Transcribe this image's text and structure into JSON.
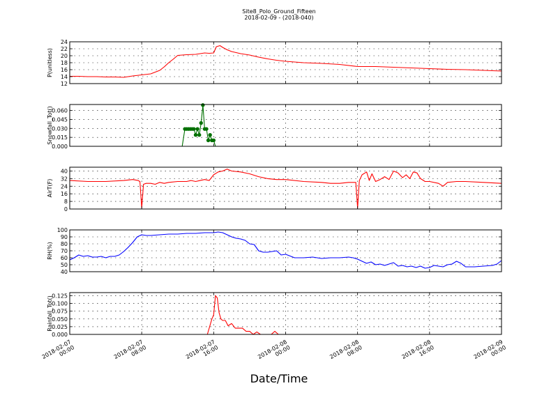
{
  "figure": {
    "title": "Site8_Polo_Ground_Fifteen",
    "subtitle": "2018-02-09 - (2018-040)",
    "xlabel": "Date/Time",
    "x_ticks": [
      [
        "2018-02-07",
        "00:00"
      ],
      [
        "2018-02-07",
        "08:00"
      ],
      [
        "2018-02-07",
        "16:00"
      ],
      [
        "2018-02-08",
        "00:00"
      ],
      [
        "2018-02-08",
        "08:00"
      ],
      [
        "2018-02-08",
        "16:00"
      ],
      [
        "2018-02-09",
        "00:00"
      ]
    ],
    "x_range_hours": [
      0,
      48
    ]
  },
  "chart_data": [
    {
      "type": "line",
      "ylabel": "P(unitless)",
      "ylim": [
        12,
        24
      ],
      "yticks": [
        12,
        14,
        16,
        18,
        20,
        22,
        24
      ],
      "tick_decimals": 0,
      "grid": true,
      "series": [
        {
          "color": "#ff0000",
          "markers": false,
          "x": [
            0,
            1,
            2,
            3,
            4,
            5,
            6,
            7,
            8,
            9,
            10,
            10.5,
            11,
            11.5,
            12,
            12.5,
            13,
            14,
            15,
            15.5,
            16,
            16.3,
            16.7,
            17,
            17.5,
            18,
            19,
            20,
            21,
            22,
            23,
            24,
            26,
            28,
            30,
            32,
            34,
            36,
            38,
            40,
            42,
            44,
            46,
            48
          ],
          "y": [
            14.1,
            14.1,
            14,
            14,
            13.9,
            13.9,
            13.8,
            14.2,
            14.5,
            14.8,
            15.8,
            16.8,
            18,
            19,
            20.1,
            20.2,
            20.3,
            20.4,
            20.8,
            20.7,
            20.8,
            22.6,
            22.9,
            22.4,
            21.7,
            21.2,
            20.6,
            20.2,
            19.6,
            19.1,
            18.7,
            18.4,
            18,
            17.8,
            17.5,
            16.9,
            16.9,
            16.7,
            16.5,
            16.3,
            16.1,
            16,
            15.8,
            15.6
          ]
        }
      ]
    },
    {
      "type": "line",
      "ylabel": "Snowfall_Tot()",
      "ylim": [
        0,
        0.07
      ],
      "yticks": [
        0,
        0.015,
        0.03,
        0.045,
        0.06
      ],
      "tick_decimals": 3,
      "grid": true,
      "series": [
        {
          "color": "#007000",
          "markers": true,
          "x": [
            0,
            12.5,
            12.8,
            13.0,
            13.2,
            13.4,
            13.6,
            13.8,
            14.0,
            14.2,
            14.4,
            14.6,
            14.8,
            15.0,
            15.2,
            15.4,
            15.6,
            15.8,
            16.0,
            16.2,
            48
          ],
          "y": [
            0,
            0,
            0.029,
            0.029,
            0.029,
            0.029,
            0.029,
            0.029,
            0.019,
            0.029,
            0.019,
            0.039,
            0.069,
            0.029,
            0.029,
            0.01,
            0.019,
            0.01,
            0.01,
            0,
            0
          ]
        }
      ]
    },
    {
      "type": "line",
      "ylabel": "AirT(F)",
      "ylim": [
        0,
        44
      ],
      "yticks": [
        0,
        8,
        16,
        24,
        32,
        40
      ],
      "tick_decimals": 0,
      "grid": true,
      "series": [
        {
          "color": "#ff0000",
          "markers": false,
          "x": [
            0,
            2,
            4,
            6,
            7,
            7.6,
            7.8,
            8.0,
            8.2,
            8.5,
            9,
            9.5,
            10,
            10.5,
            11,
            12,
            13,
            13.5,
            14,
            14.5,
            15,
            15.5,
            16,
            16.5,
            17,
            17.5,
            18,
            19,
            20,
            21,
            22,
            23,
            24,
            26,
            28,
            29,
            30,
            31,
            31.8,
            32.0,
            32.2,
            32.5,
            33,
            33.3,
            33.6,
            34,
            34.5,
            35,
            35.5,
            36,
            36.5,
            37,
            37.4,
            37.8,
            38.2,
            38.6,
            39,
            39.5,
            40,
            41,
            41.5,
            42,
            43,
            44,
            46,
            48
          ],
          "y": [
            30,
            29,
            29,
            30,
            31,
            30,
            29,
            1,
            26,
            27,
            27,
            26,
            28,
            27,
            28,
            29,
            29,
            30,
            29,
            30,
            31,
            30,
            36,
            39,
            40,
            42,
            40,
            39,
            37,
            34,
            32,
            31,
            31,
            29,
            28,
            27,
            27,
            28,
            28,
            1,
            30,
            36,
            39,
            30,
            37,
            29,
            31,
            34,
            31,
            40,
            38,
            33,
            36,
            32,
            39,
            38,
            32,
            29,
            29,
            27,
            24,
            28,
            29,
            29,
            28,
            27
          ]
        }
      ]
    },
    {
      "type": "line",
      "ylabel": "RH(%)",
      "ylim": [
        40,
        100
      ],
      "yticks": [
        40,
        50,
        60,
        70,
        80,
        90,
        100
      ],
      "tick_decimals": 0,
      "grid": true,
      "series": [
        {
          "color": "#0000ff",
          "markers": false,
          "x": [
            0,
            0.5,
            1,
            1.5,
            2,
            2.5,
            3,
            3.5,
            4,
            4.5,
            5,
            5.5,
            6,
            6.5,
            7,
            7.5,
            8,
            8.5,
            9,
            10,
            11,
            12,
            13,
            14,
            15,
            15.5,
            16,
            16.5,
            17,
            17.5,
            18,
            18.5,
            19,
            19.5,
            20,
            20.5,
            21,
            21.5,
            22,
            22.5,
            23,
            23.5,
            24,
            25,
            26,
            27,
            28,
            29,
            30,
            31,
            31.5,
            32,
            32.5,
            33,
            33.5,
            34,
            34.5,
            35,
            35.5,
            36,
            36.5,
            37,
            37.5,
            38,
            38.5,
            39,
            39.5,
            40,
            40.5,
            41,
            41.5,
            42,
            42.5,
            43,
            43.5,
            44,
            45,
            46,
            47,
            47.5,
            48
          ],
          "y": [
            57,
            60,
            64,
            62,
            63,
            61,
            61,
            62,
            60,
            62,
            62,
            64,
            69,
            75,
            82,
            90,
            93,
            92,
            92,
            93,
            94,
            94,
            95,
            95,
            96,
            96,
            96,
            97,
            96,
            93,
            90,
            88,
            87,
            85,
            80,
            79,
            70,
            68,
            68,
            69,
            70,
            64,
            65,
            60,
            60,
            61,
            59,
            60,
            60,
            61,
            60,
            58,
            55,
            52,
            54,
            50,
            51,
            49,
            51,
            53,
            48,
            49,
            47,
            48,
            46,
            48,
            45,
            46,
            49,
            48,
            47,
            50,
            51,
            55,
            52,
            47,
            47,
            48,
            49,
            51,
            56
          ]
        }
      ]
    },
    {
      "type": "line",
      "ylabel": "Rainfall_Tot()",
      "ylim": [
        0,
        0.135
      ],
      "yticks": [
        0,
        0.025,
        0.05,
        0.075,
        0.1,
        0.125
      ],
      "tick_decimals": 3,
      "grid": true,
      "series": [
        {
          "color": "#ff0000",
          "markers": false,
          "x": [
            0,
            15.3,
            15.5,
            15.8,
            16.0,
            16.2,
            16.4,
            16.6,
            16.8,
            17.0,
            17.3,
            17.6,
            18.0,
            18.4,
            18.8,
            19.2,
            19.6,
            20.0,
            20.4,
            20.8,
            21.2,
            21.6,
            22.0,
            22.4,
            22.8,
            23.2,
            23.6,
            24.0,
            48
          ],
          "y": [
            0,
            0,
            0.02,
            0.05,
            0.063,
            0.125,
            0.118,
            0.07,
            0.05,
            0.045,
            0.045,
            0.028,
            0.035,
            0.02,
            0.02,
            0.02,
            0.01,
            0.01,
            0,
            0.008,
            0,
            0,
            0,
            0,
            0.01,
            0,
            0,
            0,
            0
          ]
        }
      ]
    }
  ]
}
